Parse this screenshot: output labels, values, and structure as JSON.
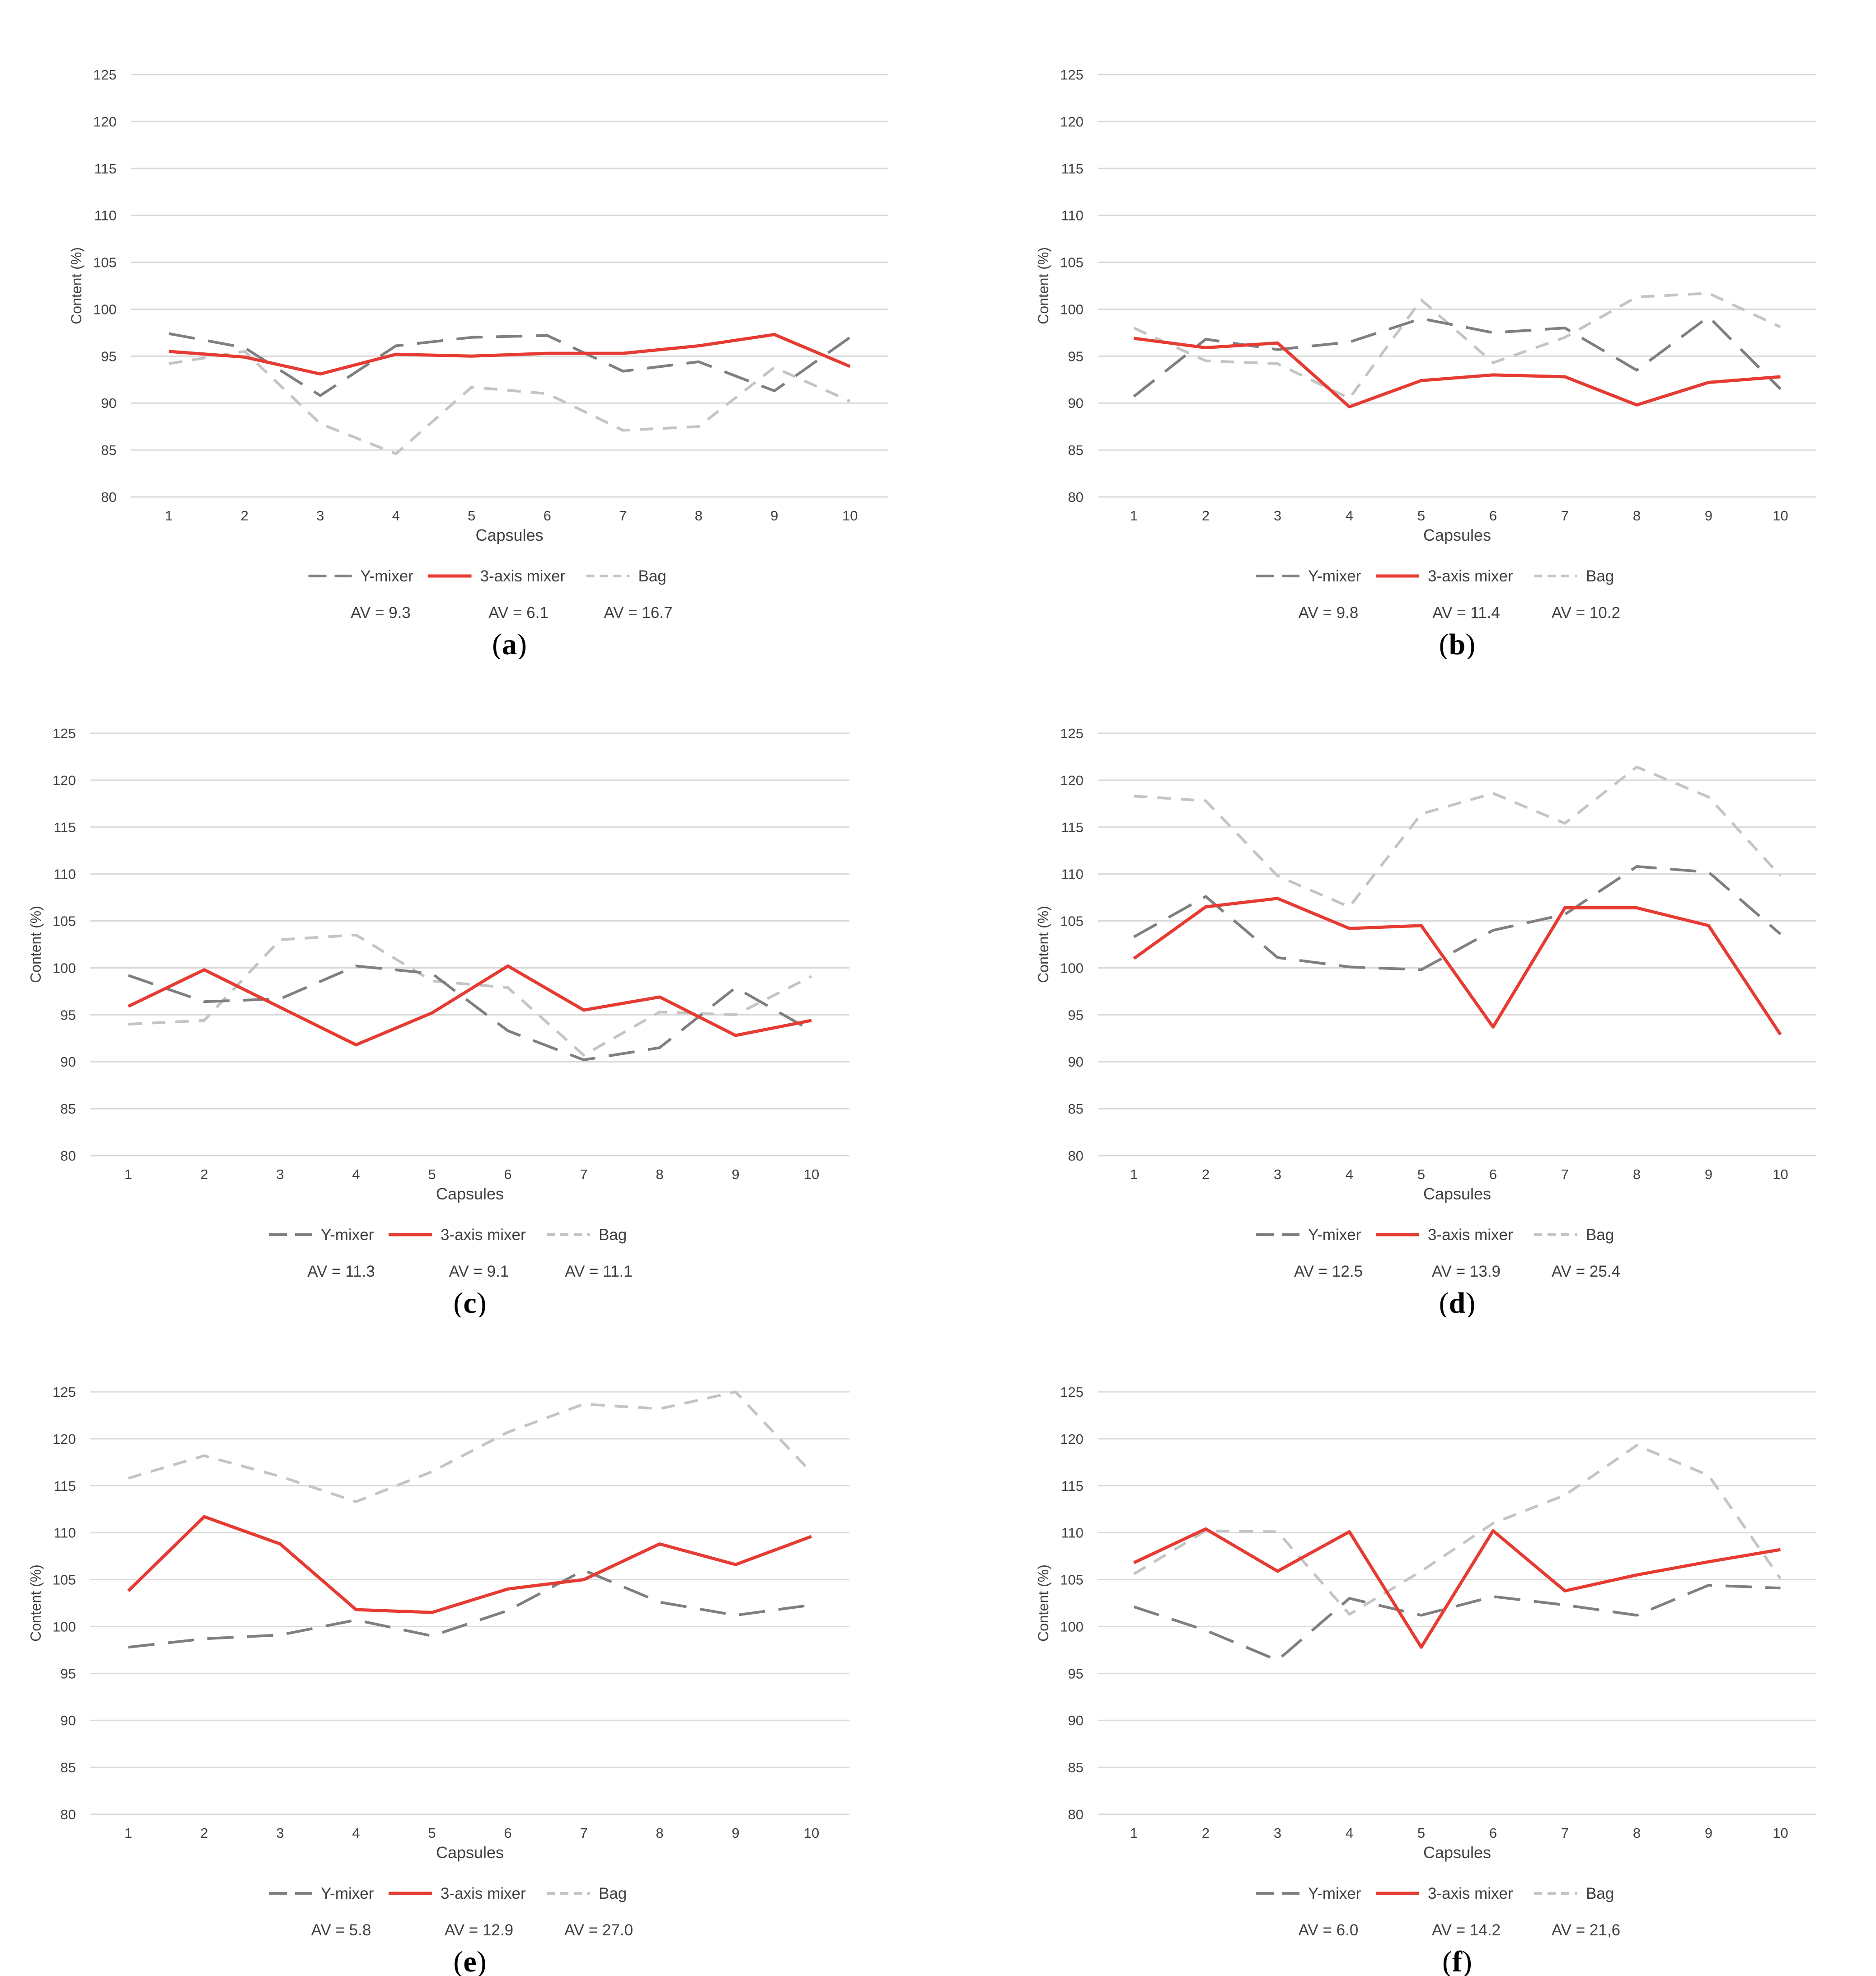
{
  "chart_data": [
    {
      "panel_label": "a",
      "type": "line",
      "ylabel": "Content (%)",
      "xlabel": "Capsules",
      "categories": [
        "1",
        "2",
        "3",
        "4",
        "5",
        "6",
        "7",
        "8",
        "9",
        "10"
      ],
      "ylim": [
        80,
        125
      ],
      "yticks": [
        "80",
        "85",
        "90",
        "95",
        "100",
        "105",
        "110",
        "115",
        "120",
        "125"
      ],
      "grid": true,
      "legend": "bottom",
      "series": [
        {
          "name": "Y-mixer",
          "values": [
            97.4,
            95.9,
            90.8,
            96.1,
            97.0,
            97.2,
            93.4,
            94.4,
            91.3,
            97.0
          ]
        },
        {
          "name": "3-axis mixer",
          "values": [
            95.5,
            94.9,
            93.1,
            95.2,
            95.0,
            95.3,
            95.3,
            96.1,
            97.3,
            93.9
          ]
        },
        {
          "name": "Bag",
          "values": [
            94.2,
            95.5,
            87.8,
            84.6,
            91.7,
            91.0,
            87.1,
            87.5,
            93.8,
            90.2
          ]
        }
      ],
      "av": [
        "AV = 9.3",
        "AV = 6.1",
        "AV = 16.7"
      ]
    },
    {
      "panel_label": "b",
      "type": "line",
      "ylabel": "Content (%)",
      "xlabel": "Capsules",
      "categories": [
        "1",
        "2",
        "3",
        "4",
        "5",
        "6",
        "7",
        "8",
        "9",
        "10"
      ],
      "ylim": [
        80,
        125
      ],
      "yticks": [
        "80",
        "85",
        "90",
        "95",
        "100",
        "105",
        "110",
        "115",
        "120",
        "125"
      ],
      "grid": true,
      "legend": "bottom",
      "series": [
        {
          "name": "Y-mixer",
          "values": [
            90.7,
            96.8,
            95.7,
            96.5,
            99.0,
            97.5,
            98.0,
            93.5,
            99.2,
            91.5
          ]
        },
        {
          "name": "3-axis mixer",
          "values": [
            96.9,
            95.9,
            96.4,
            89.6,
            92.4,
            93.0,
            92.8,
            89.8,
            92.2,
            92.8
          ]
        },
        {
          "name": "Bag",
          "values": [
            98.0,
            94.5,
            94.2,
            90.5,
            101.0,
            94.3,
            97.0,
            101.3,
            101.7,
            98.1
          ]
        }
      ],
      "av": [
        "AV = 9.8",
        "AV = 11.4",
        "AV = 10.2"
      ]
    },
    {
      "panel_label": "c",
      "type": "line",
      "ylabel": "Content (%)",
      "xlabel": "Capsules",
      "categories": [
        "1",
        "2",
        "3",
        "4",
        "5",
        "6",
        "7",
        "8",
        "9",
        "10"
      ],
      "ylim": [
        80,
        125
      ],
      "yticks": [
        "80",
        "85",
        "90",
        "95",
        "100",
        "105",
        "110",
        "115",
        "120",
        "125"
      ],
      "grid": true,
      "legend": "bottom",
      "series": [
        {
          "name": "Y-mixer",
          "values": [
            99.2,
            96.4,
            96.7,
            100.2,
            99.4,
            93.3,
            90.2,
            91.5,
            97.9,
            93.3
          ]
        },
        {
          "name": "3-axis mixer",
          "values": [
            95.9,
            99.8,
            95.8,
            91.8,
            95.2,
            100.2,
            95.5,
            96.9,
            92.8,
            94.4
          ]
        },
        {
          "name": "Bag",
          "values": [
            94.0,
            94.4,
            103.0,
            103.5,
            98.6,
            97.9,
            90.7,
            95.3,
            95.0,
            99.1
          ]
        }
      ],
      "av": [
        "AV = 11.3",
        "AV = 9.1",
        "AV = 11.1"
      ]
    },
    {
      "panel_label": "d",
      "type": "line",
      "ylabel": "Content (%)",
      "xlabel": "Capsules",
      "categories": [
        "1",
        "2",
        "3",
        "4",
        "5",
        "6",
        "7",
        "8",
        "9",
        "10"
      ],
      "ylim": [
        80,
        125
      ],
      "yticks": [
        "80",
        "85",
        "90",
        "95",
        "100",
        "105",
        "110",
        "115",
        "120",
        "125"
      ],
      "grid": true,
      "legend": "bottom",
      "series": [
        {
          "name": "Y-mixer",
          "values": [
            103.3,
            107.6,
            101.1,
            100.1,
            99.8,
            104.0,
            105.7,
            110.8,
            110.2,
            103.6
          ]
        },
        {
          "name": "3-axis mixer",
          "values": [
            101.0,
            106.5,
            107.4,
            104.2,
            104.5,
            93.7,
            106.4,
            106.4,
            104.5,
            92.9
          ]
        },
        {
          "name": "Bag",
          "values": [
            118.3,
            117.8,
            109.8,
            106.5,
            116.4,
            118.6,
            115.4,
            121.4,
            118.2,
            109.8
          ]
        }
      ],
      "av": [
        "AV = 12.5",
        "AV = 13.9",
        "AV = 25.4"
      ]
    },
    {
      "panel_label": "e",
      "type": "line",
      "ylabel": "Content (%)",
      "xlabel": "Capsules",
      "categories": [
        "1",
        "2",
        "3",
        "4",
        "5",
        "6",
        "7",
        "8",
        "9",
        "10"
      ],
      "ylim": [
        80,
        125
      ],
      "yticks": [
        "80",
        "85",
        "90",
        "95",
        "100",
        "105",
        "110",
        "115",
        "120",
        "125"
      ],
      "grid": true,
      "legend": "bottom",
      "series": [
        {
          "name": "Y-mixer",
          "values": [
            97.8,
            98.7,
            99.1,
            100.7,
            99.0,
            101.7,
            106.0,
            102.6,
            101.2,
            102.3
          ]
        },
        {
          "name": "3-axis mixer",
          "values": [
            103.8,
            111.7,
            108.8,
            101.8,
            101.5,
            104.0,
            105.0,
            108.8,
            106.6,
            109.6
          ]
        },
        {
          "name": "Bag",
          "values": [
            115.8,
            118.2,
            116.0,
            113.3,
            116.5,
            120.7,
            123.7,
            123.2,
            125.0,
            116.4
          ]
        }
      ],
      "av": [
        "AV = 5.8",
        "AV = 12.9",
        "AV = 27.0"
      ]
    },
    {
      "panel_label": "f",
      "type": "line",
      "ylabel": "Content (%)",
      "xlabel": "Capsules",
      "categories": [
        "1",
        "2",
        "3",
        "4",
        "5",
        "6",
        "7",
        "8",
        "9",
        "10"
      ],
      "ylim": [
        80,
        125
      ],
      "yticks": [
        "80",
        "85",
        "90",
        "95",
        "100",
        "105",
        "110",
        "115",
        "120",
        "125"
      ],
      "grid": true,
      "legend": "bottom",
      "series": [
        {
          "name": "Y-mixer",
          "values": [
            102.1,
            99.6,
            96.4,
            103.0,
            101.2,
            103.2,
            102.3,
            101.2,
            104.4,
            104.1
          ]
        },
        {
          "name": "3-axis mixer",
          "values": [
            106.8,
            110.4,
            105.9,
            110.1,
            97.8,
            110.2,
            103.8,
            105.5,
            106.9,
            108.2
          ]
        },
        {
          "name": "Bag",
          "values": [
            105.6,
            110.2,
            110.1,
            101.3,
            105.9,
            111.0,
            114.0,
            119.3,
            116.1,
            105.1
          ]
        }
      ],
      "av": [
        "AV = 6.0",
        "AV = 14.2",
        "AV = 21,6"
      ]
    }
  ],
  "style": {
    "series_colors": [
      "#7f7f7f",
      "#e63b33",
      "#c4c4c4"
    ],
    "grid_color": "#d9d9d9",
    "text_color": "#404040",
    "label_color": "#000000"
  }
}
